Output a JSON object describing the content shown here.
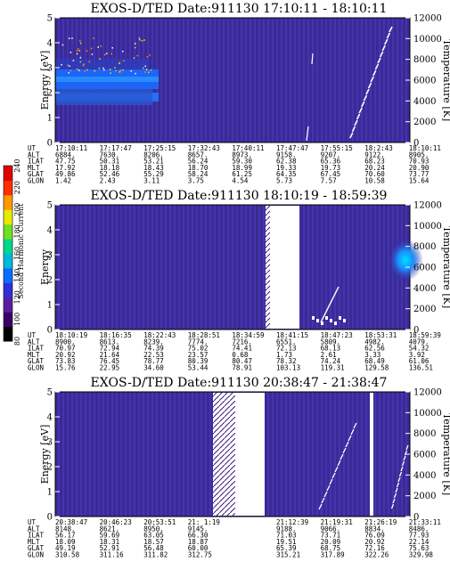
{
  "colorbar": {
    "label": "Second Harmonic Current",
    "ticks": [
      "80",
      "100",
      "120",
      "140",
      "160",
      "180",
      "200",
      "220",
      "240"
    ],
    "colors": [
      "#000000",
      "#3a006a",
      "#5a1fa0",
      "#3030d8",
      "#0a6cff",
      "#00b8d8",
      "#00d890",
      "#70e020",
      "#e8e800",
      "#ff9800",
      "#ff3000",
      "#e00000"
    ]
  },
  "chart_data": [
    {
      "type": "heatmap",
      "title": "EXOS-D/TED   Date:911130   17:10:11 - 18:10:11",
      "ylabel": "Energy [eV]",
      "y2label": "Temperature [K]",
      "ylim": [
        0,
        5
      ],
      "y_ticks": [
        "0",
        "1",
        "2",
        "3",
        "4",
        "5"
      ],
      "y2_ticks": [
        "0",
        "2000",
        "4000",
        "6000",
        "8000",
        "10000",
        "12000"
      ],
      "table_rows": [
        {
          "label": "UT",
          "values": [
            "17:10:11",
            "17:17:47",
            "17:25:15",
            "17:32:43",
            "17:40:11",
            "17:47:47",
            "17:55:15",
            "18:2:43",
            "18:10:11"
          ]
        },
        {
          "label": "ALT",
          "values": [
            "6884.",
            "7630.",
            "8206.",
            "8657.",
            "8973.",
            "9158.",
            "9207.",
            "9122.",
            "8905."
          ]
        },
        {
          "label": "ILAT",
          "values": [
            "47.75",
            "50.31",
            "53.21",
            "56.24",
            "59.30",
            "62.38",
            "65.36",
            "68.23",
            "70.93"
          ]
        },
        {
          "label": "MLT",
          "values": [
            "17.92",
            "18.18",
            "18.43",
            "18.70",
            "18.99",
            "19.33",
            "19.73",
            "20.24",
            "20.90"
          ]
        },
        {
          "label": "GLAT",
          "values": [
            "49.86",
            "52.46",
            "55.29",
            "58.24",
            "61.25",
            "64.35",
            "67.45",
            "70.60",
            "73.77"
          ]
        },
        {
          "label": "GLON",
          "values": [
            "1.42",
            "2.43",
            "3.11",
            "3.75",
            "4.54",
            "5.73",
            "7.57",
            "10.58",
            "15.64"
          ]
        }
      ]
    },
    {
      "type": "heatmap",
      "title": "EXOS-D/TED   Date:911130   18:10:19 - 18:59:39",
      "ylabel": "Energy",
      "y2label": "Temperature [K]",
      "ylim": [
        0,
        5
      ],
      "y_ticks": [
        "0",
        "1",
        "2",
        "3",
        "4",
        "5"
      ],
      "y2_ticks": [
        "0",
        "2000",
        "4000",
        "6000",
        "8000",
        "10000",
        "12000"
      ],
      "table_rows": [
        {
          "label": "UT",
          "values": [
            "18:10:19",
            "18:16:35",
            "18:22:43",
            "18:28:51",
            "18:34:59",
            "18:41:15",
            "18:47:23",
            "18:53:31",
            "18:59:39"
          ]
        },
        {
          "label": "ALT",
          "values": [
            "8900.",
            "8613.",
            "8239.",
            "7774.",
            "7216.",
            "6551.",
            "5809.",
            "4982.",
            "4079."
          ]
        },
        {
          "label": "ILAT",
          "values": [
            "70.97",
            "72.94",
            "74.39",
            "75.02",
            "74.41",
            "72.13",
            "68.13",
            "62.56",
            "54.32"
          ]
        },
        {
          "label": "MLT",
          "values": [
            "20.92",
            "21.64",
            "22.53",
            "23.57",
            "0.68",
            "1.73",
            "2.61",
            "3.33",
            "3.92"
          ]
        },
        {
          "label": "GLAT",
          "values": [
            "73.83",
            "76.45",
            "78.77",
            "80.39",
            "80.47",
            "78.32",
            "74.24",
            "68.49",
            "61.06"
          ]
        },
        {
          "label": "GLON",
          "values": [
            "15.76",
            "22.95",
            "34.60",
            "53.44",
            "78.91",
            "103.13",
            "119.31",
            "129.58",
            "136.51"
          ]
        }
      ]
    },
    {
      "type": "heatmap",
      "title": "EXOS-D/TED   Date:911130   20:38:47 - 21:38:47",
      "ylabel": "Energy [eV]",
      "y2label": "Temperature [K]",
      "ylim": [
        0,
        5
      ],
      "y_ticks": [
        "0",
        "1",
        "2",
        "3",
        "4",
        "5"
      ],
      "y2_ticks": [
        "0",
        "2000",
        "4000",
        "6000",
        "8000",
        "10000",
        "12000"
      ],
      "table_rows": [
        {
          "label": "UT",
          "values": [
            "20:38:47",
            "20:46:23",
            "20:53:51",
            "21: 1:19",
            "",
            "21:12:39",
            "21:19:31",
            "21:26:19",
            "21:33:11"
          ]
        },
        {
          "label": "ALT",
          "values": [
            "8148.",
            "8621.",
            "8950.",
            "9145.",
            "",
            "9188.",
            "9066.",
            "8834.",
            "8486."
          ]
        },
        {
          "label": "ILAT",
          "values": [
            "56.17",
            "59.69",
            "63.05",
            "66.30",
            "",
            "71.03",
            "73.71",
            "76.09",
            "77.93"
          ]
        },
        {
          "label": "MLT",
          "values": [
            "18.09",
            "18.31",
            "18.57",
            "18.87",
            "",
            "19.51",
            "20.09",
            "20.92",
            "22.14"
          ]
        },
        {
          "label": "GLAT",
          "values": [
            "49.19",
            "52.91",
            "56.48",
            "60.00",
            "",
            "65.39",
            "68.75",
            "72.16",
            "75.63"
          ]
        },
        {
          "label": "GLON",
          "values": [
            "310.58",
            "311.16",
            "311.82",
            "312.75",
            "",
            "315.21",
            "317.89",
            "322.26",
            "329.98"
          ]
        }
      ]
    }
  ]
}
